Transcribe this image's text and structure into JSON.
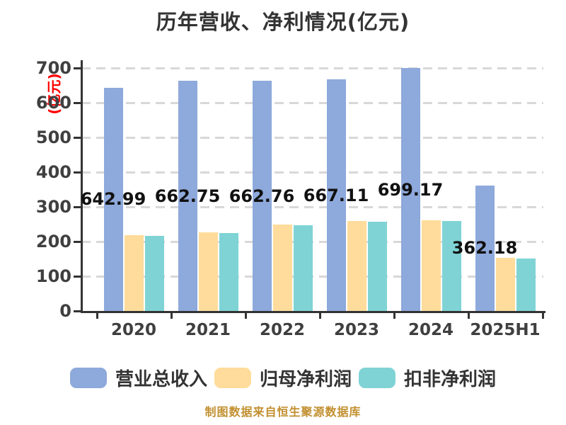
{
  "title": "历年营收、净利情况(亿元)",
  "y_axis_unit_label": "(亿元)",
  "footer": "制图数据来自恒生聚源数据库",
  "colors": {
    "revenue_bar": "#8EA9DB",
    "net_profit_bar": "#FFDC9B",
    "net_profit_excl_bar": "#7FD3D5",
    "grid_line": "#D8D8D8",
    "axis_line": "#333333",
    "tick_text": "#3F3F3F",
    "value_label_text": "#111111",
    "unit_label_red": "#FF0000",
    "footer_text": "#C18F2F"
  },
  "chart_data": {
    "type": "bar",
    "title": "历年营收、净利情况(亿元)",
    "ylabel": "(亿元)",
    "categories": [
      "2020",
      "2021",
      "2022",
      "2023",
      "2024",
      "2025H1"
    ],
    "series": [
      {
        "name": "营业总收入",
        "color": "#8EA9DB",
        "values": [
          642.99,
          662.75,
          662.76,
          667.11,
          699.17,
          362.18
        ],
        "value_labels": [
          "642.99",
          "662.75",
          "662.76",
          "667.11",
          "699.17",
          "362.18"
        ]
      },
      {
        "name": "归母净利润",
        "color": "#FFDC9B",
        "values": [
          218,
          226,
          248,
          259,
          261,
          154
        ]
      },
      {
        "name": "扣非净利润",
        "color": "#7FD3D5",
        "values": [
          217,
          225,
          247,
          257,
          260,
          152
        ]
      }
    ],
    "ylim": [
      0,
      700
    ],
    "y_ticks": [
      0,
      100,
      200,
      300,
      400,
      500,
      600,
      700
    ],
    "grid": "horizontal-dashed",
    "legend_position": "bottom"
  },
  "legend": {
    "items": [
      {
        "label": "营业总收入",
        "color": "#8EA9DB"
      },
      {
        "label": "归母净利润",
        "color": "#FFDC9B"
      },
      {
        "label": "扣非净利润",
        "color": "#7FD3D5"
      }
    ]
  }
}
